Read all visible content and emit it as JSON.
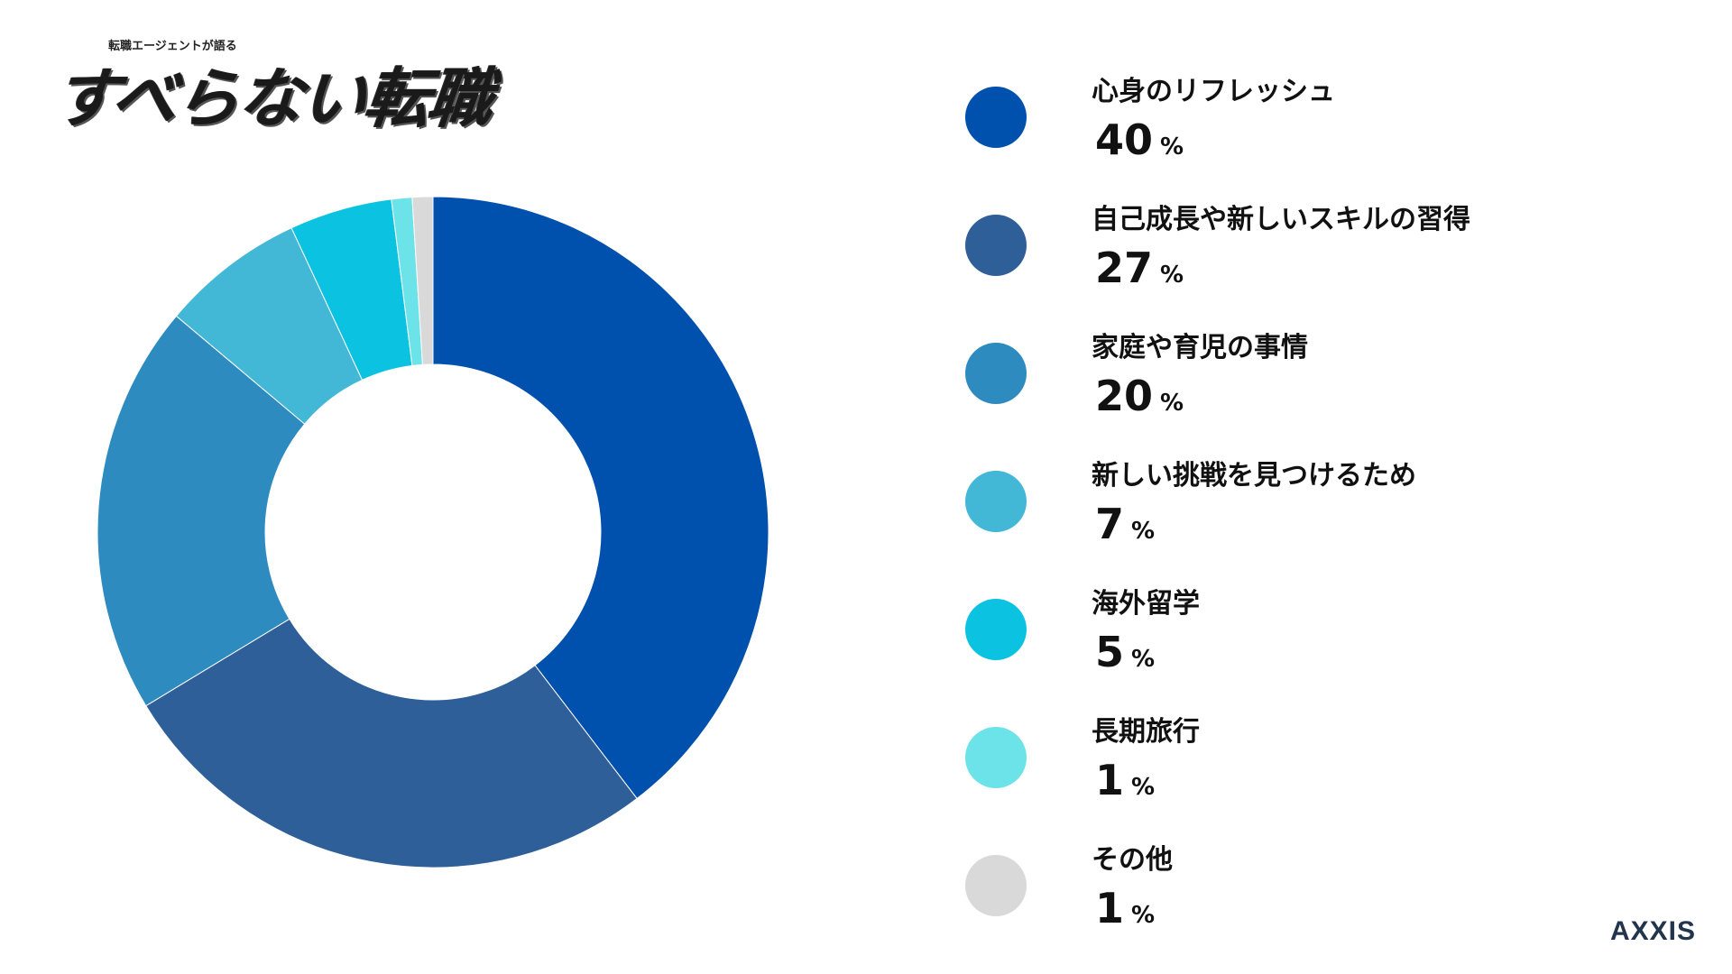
{
  "logo": {
    "subtitle": "転職エージェントが語る",
    "title": "すべらない転職"
  },
  "brand": "AXXIS",
  "unit": "%",
  "chart_data": {
    "type": "pie",
    "donut": true,
    "title": "",
    "legend_position": "right",
    "slices": [
      {
        "label": "心身のリフレッシュ",
        "value": 40,
        "color": "#0050AD"
      },
      {
        "label": "自己成長や新しいスキルの習得",
        "value": 27,
        "color": "#2E5F99"
      },
      {
        "label": "家庭や育児の事情",
        "value": 20,
        "color": "#2E8BBF"
      },
      {
        "label": "新しい挑戦を見つけるため",
        "value": 7,
        "color": "#43B8D6"
      },
      {
        "label": "海外留学",
        "value": 5,
        "color": "#0BC3E0"
      },
      {
        "label": "長期旅行",
        "value": 1,
        "color": "#6CE3E8"
      },
      {
        "label": "その他",
        "value": 1,
        "color": "#D9D9D9"
      }
    ]
  }
}
